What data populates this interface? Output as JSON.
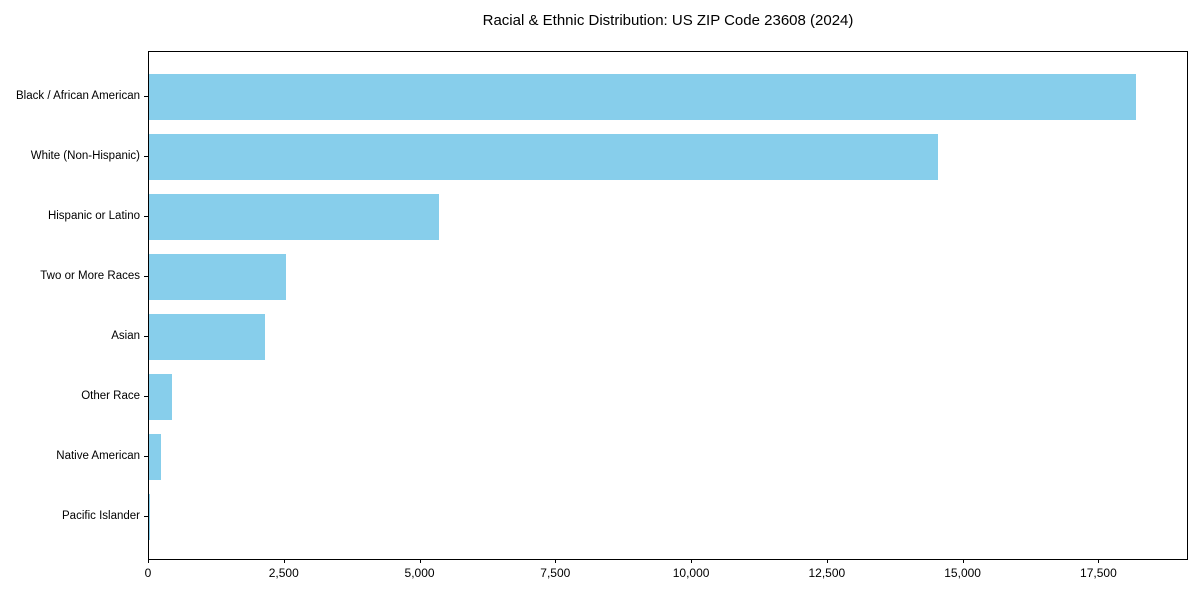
{
  "chart_data": {
    "type": "bar",
    "orientation": "horizontal",
    "title": "Racial & Ethnic Distribution: US ZIP Code 23608 (2024)",
    "categories": [
      "Black / African American",
      "White (Non-Hispanic)",
      "Hispanic or Latino",
      "Two or More Races",
      "Asian",
      "Other Race",
      "Native American",
      "Pacific Islander"
    ],
    "values": [
      18200,
      14550,
      5350,
      2530,
      2140,
      430,
      220,
      25
    ],
    "xlabel": "",
    "ylabel": "",
    "xlim": [
      0,
      19150
    ],
    "xticks": [
      {
        "value": 0,
        "label": "0"
      },
      {
        "value": 2500,
        "label": "2,500"
      },
      {
        "value": 5000,
        "label": "5,000"
      },
      {
        "value": 7500,
        "label": "7,500"
      },
      {
        "value": 10000,
        "label": "10,000"
      },
      {
        "value": 12500,
        "label": "12,500"
      },
      {
        "value": 15000,
        "label": "15,000"
      },
      {
        "value": 17500,
        "label": "17,500"
      }
    ],
    "bar_color": "#87CEEB",
    "grid": false,
    "legend": null,
    "colors": {
      "background": "#ffffff",
      "spine": "#000000",
      "text": "#000000"
    }
  }
}
